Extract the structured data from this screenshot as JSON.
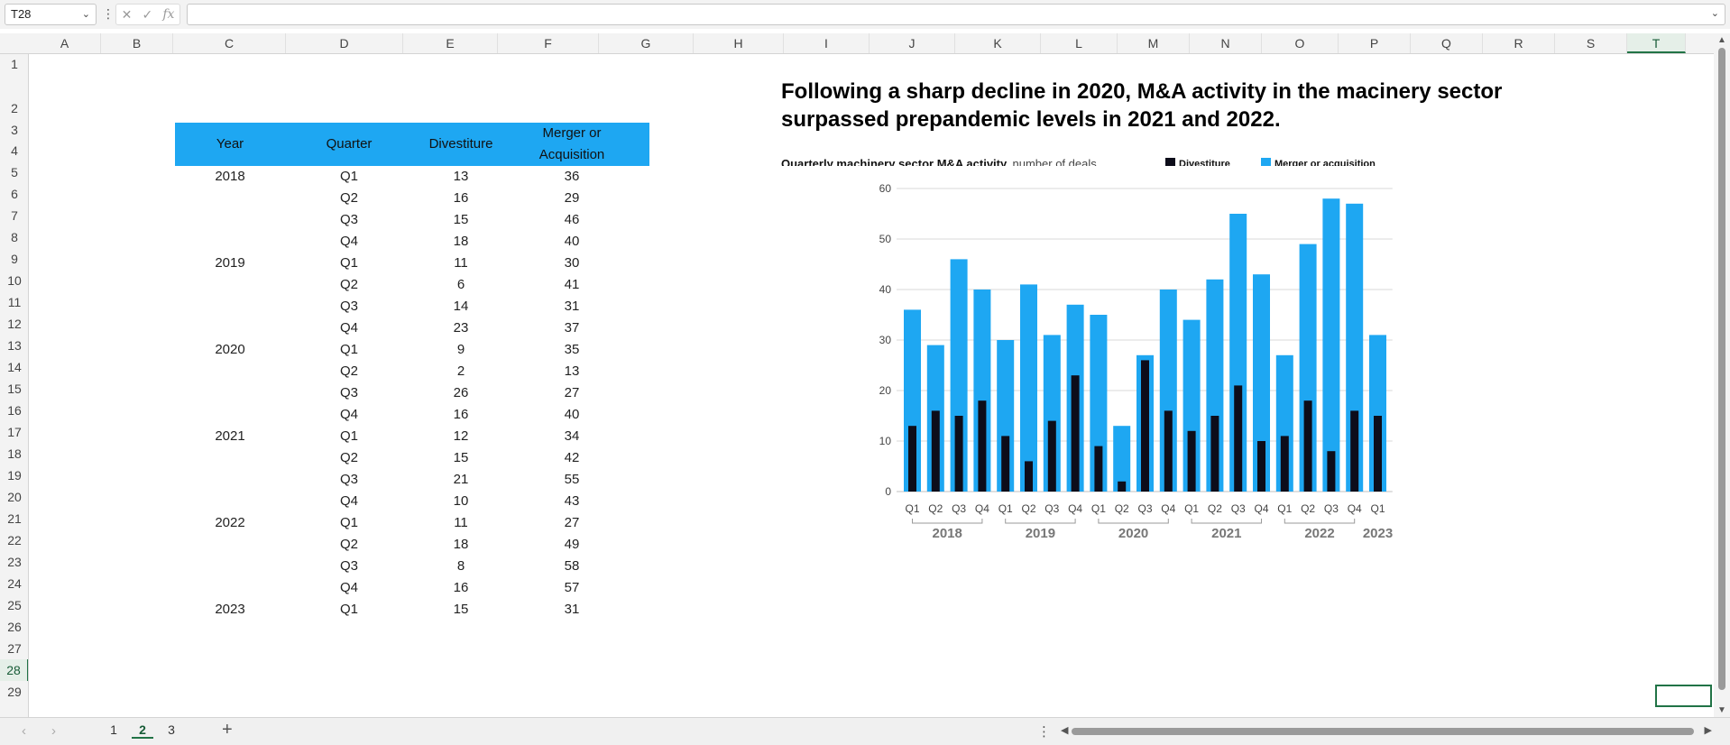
{
  "formula_bar": {
    "name_box": "T28",
    "fx_label": "fx",
    "formula": ""
  },
  "columns": [
    "A",
    "B",
    "C",
    "D",
    "E",
    "F",
    "G",
    "H",
    "I",
    "J",
    "K",
    "L",
    "M",
    "N",
    "O",
    "P",
    "Q",
    "R",
    "S",
    "T"
  ],
  "rows": [
    "1",
    "2",
    "3",
    "4",
    "5",
    "6",
    "7",
    "8",
    "9",
    "10",
    "11",
    "12",
    "13",
    "14",
    "15",
    "16",
    "17",
    "18",
    "19",
    "20",
    "21",
    "22",
    "23",
    "24",
    "25",
    "26",
    "27",
    "28",
    "29"
  ],
  "selected": {
    "column": "T",
    "row": "28"
  },
  "table": {
    "headers": {
      "year": "Year",
      "quarter": "Quarter",
      "divestiture": "Divestiture",
      "merger": "Merger or Acquisition"
    },
    "rows": [
      [
        "2018",
        "Q1",
        "13",
        "36"
      ],
      [
        "",
        "Q2",
        "16",
        "29"
      ],
      [
        "",
        "Q3",
        "15",
        "46"
      ],
      [
        "",
        "Q4",
        "18",
        "40"
      ],
      [
        "2019",
        "Q1",
        "11",
        "30"
      ],
      [
        "",
        "Q2",
        "6",
        "41"
      ],
      [
        "",
        "Q3",
        "14",
        "31"
      ],
      [
        "",
        "Q4",
        "23",
        "37"
      ],
      [
        "2020",
        "Q1",
        "9",
        "35"
      ],
      [
        "",
        "Q2",
        "2",
        "13"
      ],
      [
        "",
        "Q3",
        "26",
        "27"
      ],
      [
        "",
        "Q4",
        "16",
        "40"
      ],
      [
        "2021",
        "Q1",
        "12",
        "34"
      ],
      [
        "",
        "Q2",
        "15",
        "42"
      ],
      [
        "",
        "Q3",
        "21",
        "55"
      ],
      [
        "",
        "Q4",
        "10",
        "43"
      ],
      [
        "2022",
        "Q1",
        "11",
        "27"
      ],
      [
        "",
        "Q2",
        "18",
        "49"
      ],
      [
        "",
        "Q3",
        "8",
        "58"
      ],
      [
        "",
        "Q4",
        "16",
        "57"
      ],
      [
        "2023",
        "Q1",
        "15",
        "31"
      ]
    ]
  },
  "chart": {
    "title": "Following a sharp decline in 2020, M&A activity in the macinery sector surpassed prepandemic levels in 2021 and 2022.",
    "subtitle": "Quarterly machinery sector M&A activity,",
    "unit": "number of deals",
    "legend": {
      "divestiture": "Divestiture",
      "merger": "Merger or acquisition"
    },
    "colors": {
      "divestiture": "#0d0d1a",
      "merger": "#1ea7f2"
    }
  },
  "chart_data": {
    "type": "bar",
    "categories": [
      "Q1",
      "Q2",
      "Q3",
      "Q4",
      "Q1",
      "Q2",
      "Q3",
      "Q4",
      "Q1",
      "Q2",
      "Q3",
      "Q4",
      "Q1",
      "Q2",
      "Q3",
      "Q4",
      "Q1",
      "Q2",
      "Q3",
      "Q4",
      "Q1"
    ],
    "groups": [
      {
        "label": "2018",
        "count": 4
      },
      {
        "label": "2019",
        "count": 4
      },
      {
        "label": "2020",
        "count": 4
      },
      {
        "label": "2021",
        "count": 4
      },
      {
        "label": "2022",
        "count": 4
      },
      {
        "label": "2023",
        "count": 1
      }
    ],
    "series": [
      {
        "name": "Merger or acquisition",
        "values": [
          36,
          29,
          46,
          40,
          30,
          41,
          31,
          37,
          35,
          13,
          27,
          40,
          34,
          42,
          55,
          43,
          27,
          49,
          58,
          57,
          31
        ]
      },
      {
        "name": "Divestiture",
        "values": [
          13,
          16,
          15,
          18,
          11,
          6,
          14,
          23,
          9,
          2,
          26,
          16,
          12,
          15,
          21,
          10,
          11,
          18,
          8,
          16,
          15
        ]
      }
    ],
    "yticks": [
      "0",
      "10",
      "20",
      "30",
      "40",
      "50",
      "60"
    ],
    "ylim": [
      0,
      60
    ],
    "grid": true,
    "legend_position": "top-right"
  },
  "sheets": {
    "tabs": [
      "1",
      "2",
      "3"
    ],
    "active": "2",
    "add_label": "+"
  }
}
